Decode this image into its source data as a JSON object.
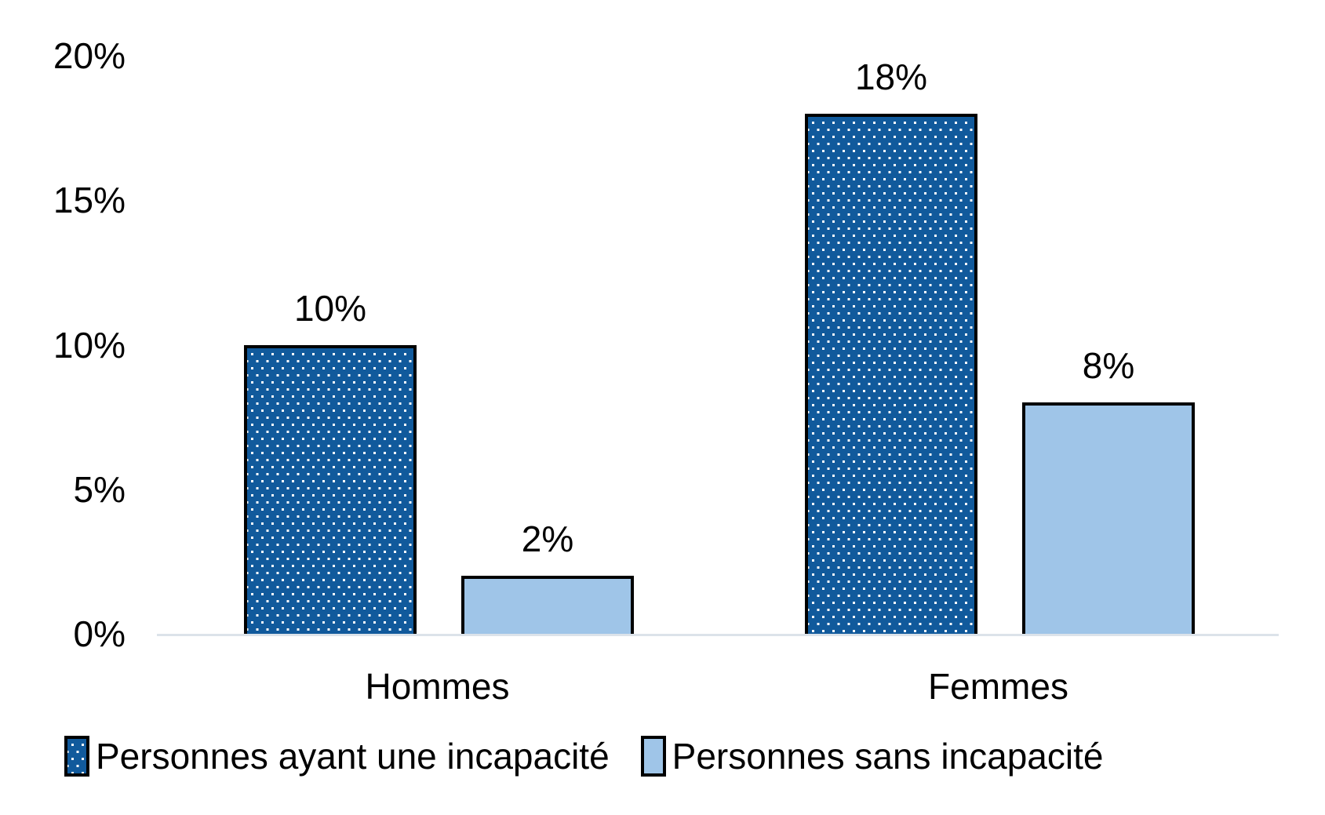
{
  "chart_data": {
    "type": "bar",
    "categories": [
      "Hommes",
      "Femmes"
    ],
    "series": [
      {
        "name": "Personnes ayant une incapacité",
        "values": [
          10,
          18
        ],
        "labels": [
          "10%",
          "18%"
        ],
        "fill": "#115A9C",
        "pattern": "white-dots",
        "border": "#000000"
      },
      {
        "name": "Personnes sans incapacité",
        "values": [
          2,
          8
        ],
        "labels": [
          "2%",
          "8%"
        ],
        "fill": "#9FC5E8",
        "pattern": "solid",
        "border": "#000000"
      }
    ],
    "ylim": [
      0,
      20
    ],
    "yticks": [
      "20%",
      "15%",
      "10%",
      "5%",
      "0%"
    ],
    "ytick_values": [
      20,
      15,
      10,
      5,
      0
    ],
    "grid": false,
    "legend_position": "bottom",
    "axis_line_color": "#DCE3EA",
    "text_color": "#000000",
    "background": "#FFFFFF"
  }
}
